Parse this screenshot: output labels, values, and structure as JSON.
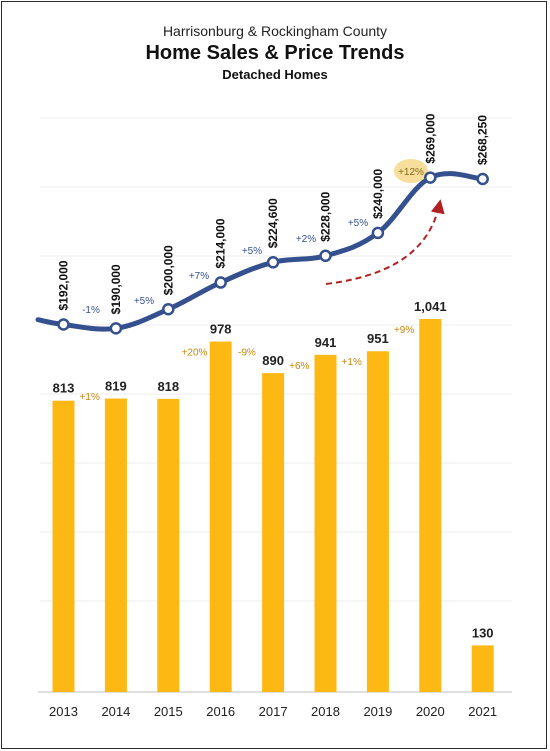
{
  "chart_data": {
    "type": "bar+line",
    "title_line1": "Harrisonburg & Rockingham County",
    "title": "Home Sales & Price Trends",
    "subtitle": "Detached Homes",
    "categories": [
      "2013",
      "2014",
      "2015",
      "2016",
      "2017",
      "2018",
      "2019",
      "2020",
      "2021"
    ],
    "series": [
      {
        "type": "bar",
        "values": [
          813,
          819,
          818,
          978,
          890,
          941,
          951,
          1041,
          130
        ],
        "value_labels": [
          "813",
          "819",
          "818",
          "978",
          "890",
          "941",
          "951",
          "1,041",
          "130"
        ],
        "change_labels": [
          "+1%",
          "",
          "+20%",
          "-9%",
          "+6%",
          "+1%",
          "+9%",
          ""
        ],
        "color": "#FDB813"
      },
      {
        "type": "line",
        "values": [
          192000,
          190000,
          200000,
          214000,
          224600,
          228000,
          240000,
          269000,
          268250
        ],
        "value_labels": [
          "$192,000",
          "$190,000",
          "$200,000",
          "$214,000",
          "$224,600",
          "$228,000",
          "$240,000",
          "$269,000",
          "$268,250"
        ],
        "change_labels": [
          "-1%",
          "+5%",
          "+7%",
          "+5%",
          "+2%",
          "+5%",
          "+12%",
          ""
        ],
        "color": "#34508F"
      }
    ],
    "annotation_color": "#B22222",
    "highlight_color": "#F7DE9A",
    "bar_change_color": "#C9870E",
    "line_change_color": "#34508F",
    "grid": true
  }
}
